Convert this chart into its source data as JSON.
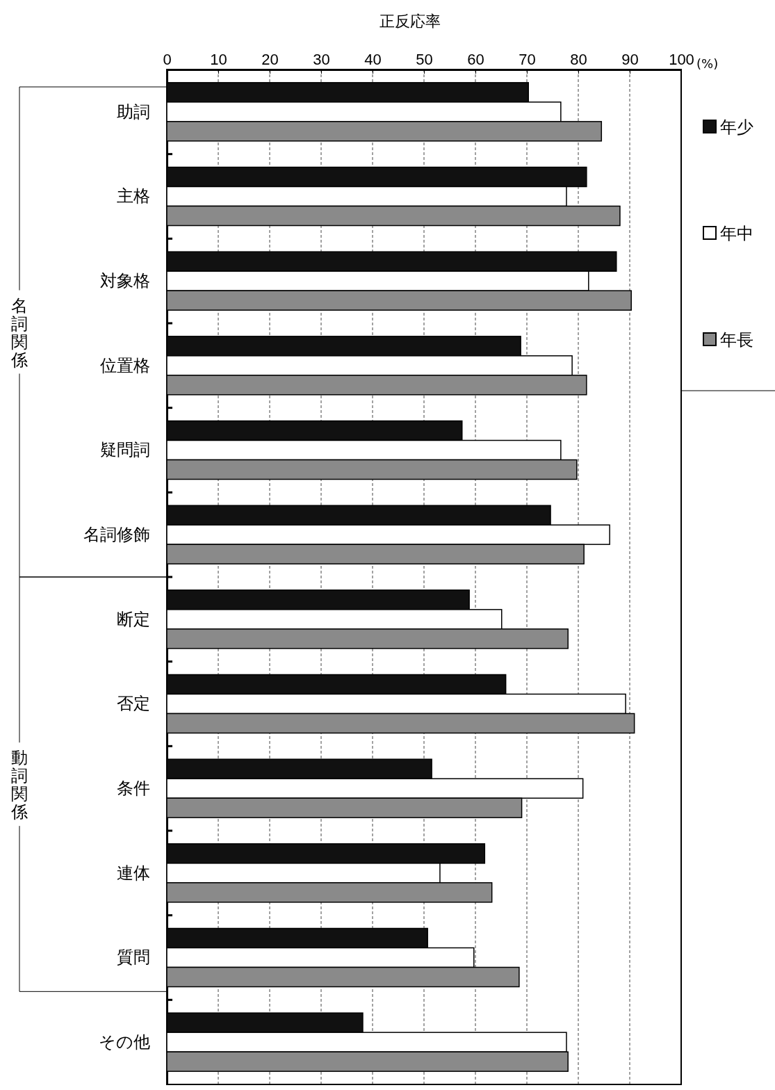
{
  "chart_data": {
    "type": "bar",
    "orientation": "horizontal",
    "xlabel": "正反応率",
    "categories": [
      "助詞",
      "主格",
      "対象格",
      "位置格",
      "疑問詞",
      "名詞修飾",
      "断定",
      "否定",
      "条件",
      "連体",
      "質問",
      "その他"
    ],
    "series": [
      {
        "name": "年少",
        "color": "#111111",
        "values": [
          70.3,
          81.6,
          87.4,
          68.8,
          57.4,
          74.6,
          58.8,
          65.9,
          51.5,
          61.8,
          50.7,
          38.1
        ]
      },
      {
        "name": "年中",
        "color": "#ffffff",
        "values": [
          76.6,
          77.7,
          82,
          78.8,
          76.6,
          86.1,
          65.1,
          89.2,
          80.9,
          53.1,
          59.7,
          77.7
        ]
      },
      {
        "name": "年長",
        "color": "#8a8a8a",
        "values": [
          84.5,
          88.1,
          90.3,
          81.6,
          79.7,
          81.1,
          78,
          90.9,
          69,
          63.2,
          68.5,
          78
        ]
      }
    ],
    "xlim": [
      0,
      100
    ],
    "xticks": [
      0,
      10,
      20,
      30,
      40,
      50,
      60,
      70,
      80,
      90,
      100
    ],
    "grid": "x",
    "legend": "right",
    "annotations": [
      "(%)",
      "名詞関係",
      "動詞関係"
    ]
  }
}
